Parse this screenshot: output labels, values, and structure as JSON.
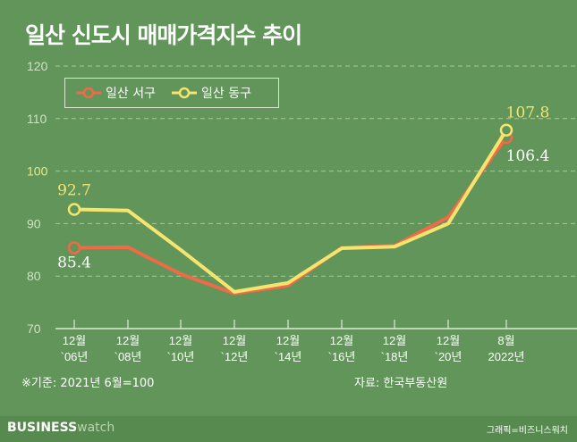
{
  "chart_data": {
    "type": "line",
    "title": "일산 신도시 매매가격지수 추이",
    "categories": [
      [
        "12월",
        "`06년"
      ],
      [
        "12월",
        "`08년"
      ],
      [
        "12월",
        "`10년"
      ],
      [
        "12월",
        "`12년"
      ],
      [
        "12월",
        "`14년"
      ],
      [
        "12월",
        "`16년"
      ],
      [
        "12월",
        "`18년"
      ],
      [
        "12월",
        "`20년"
      ],
      [
        "8월",
        "2022년"
      ]
    ],
    "series": [
      {
        "name": "일산 서구",
        "color": "#f06a48",
        "values": [
          85.4,
          85.5,
          80.4,
          76.7,
          78.2,
          85.4,
          85.8,
          91.2,
          106.4
        ],
        "labels": {
          "0": "85.4",
          "8": "106.4"
        }
      },
      {
        "name": "일산 동구",
        "color": "#f5e46e",
        "values": [
          92.7,
          92.5,
          85.0,
          77.0,
          78.7,
          85.3,
          85.6,
          90.0,
          107.8
        ],
        "labels": {
          "0": "92.7",
          "8": "107.8"
        }
      }
    ],
    "yticks": [
      70,
      80,
      90,
      100,
      110,
      120
    ],
    "ylim": [
      70,
      120
    ],
    "highlight_tick": 100,
    "grid": true,
    "legend": "top-left",
    "note": "※기준: 2021년 6월=100",
    "source": "자료: 한국부동산원"
  },
  "footer": {
    "brand_bold": "BUSINESS",
    "brand_light": "watch",
    "credit": "그래픽=비즈니스워치"
  }
}
